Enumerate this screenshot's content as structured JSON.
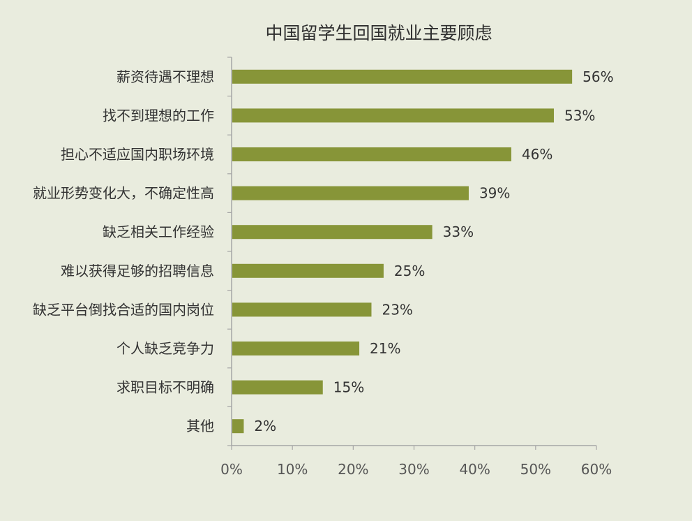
{
  "chart_data": {
    "type": "bar",
    "orientation": "horizontal",
    "title": "中国留学生回国就业主要顾虑",
    "categories": [
      "薪资待遇不理想",
      "找不到理想的工作",
      "担心不适应国内职场环境",
      "就业形势变化大，不确定性高",
      "缺乏相关工作经验",
      "难以获得足够的招聘信息",
      "缺乏平台倒找合适的国内岗位",
      "个人缺乏竞争力",
      "求职目标不明确",
      "其他"
    ],
    "values": [
      56,
      53,
      46,
      39,
      33,
      25,
      23,
      21,
      15,
      2
    ],
    "value_labels": [
      "56%",
      "53%",
      "46%",
      "39%",
      "33%",
      "25%",
      "23%",
      "21%",
      "15%",
      "2%"
    ],
    "xlim": [
      0,
      60
    ],
    "x_ticks": [
      "0%",
      "10%",
      "20%",
      "30%",
      "40%",
      "50%",
      "60%"
    ],
    "x_tick_values": [
      0,
      10,
      20,
      30,
      40,
      50,
      60
    ],
    "grid": false,
    "legend": "none",
    "colors": {
      "bar": "#879538",
      "axis": "#a6a6a6",
      "background": "#e9ecde"
    }
  }
}
